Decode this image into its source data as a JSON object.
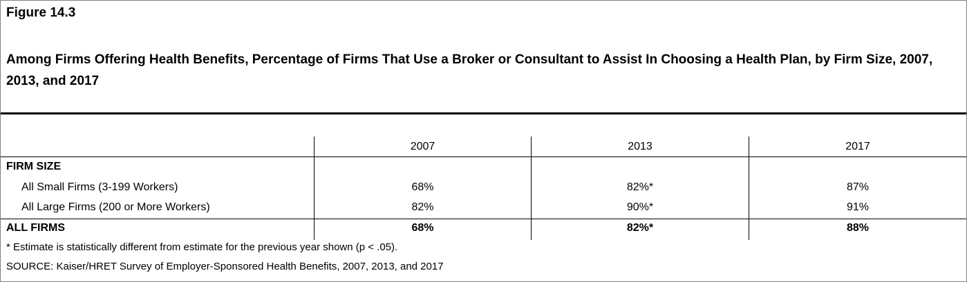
{
  "figure_label": "Figure 14.3",
  "title": "Among Firms Offering Health Benefits, Percentage of Firms That Use a Broker or Consultant to Assist In Choosing a Health Plan, by Firm Size, 2007, 2013, and 2017",
  "table": {
    "columns": [
      "2007",
      "2013",
      "2017"
    ],
    "section_header": "FIRM SIZE",
    "rows": [
      {
        "label": "All Small Firms (3-199 Workers)",
        "values": [
          "68%",
          "82%*",
          "87%"
        ]
      },
      {
        "label": "All Large Firms (200 or More Workers)",
        "values": [
          "82%",
          "90%*",
          "91%"
        ]
      }
    ],
    "total": {
      "label": "ALL FIRMS",
      "values": [
        "68%",
        "82%*",
        "88%"
      ]
    }
  },
  "footnote": "* Estimate is statistically different from estimate for the previous year shown (p < .05).",
  "source": "SOURCE: Kaiser/HRET Survey of Employer-Sponsored Health Benefits, 2007, 2013, and 2017"
}
